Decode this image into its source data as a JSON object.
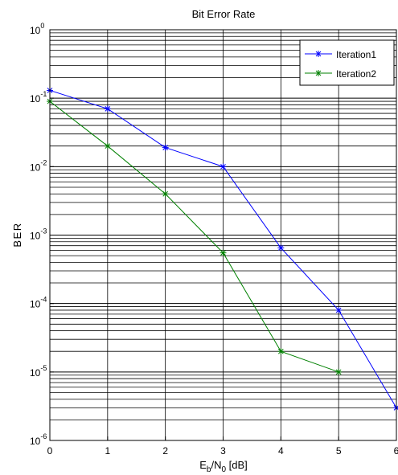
{
  "chart_data": {
    "type": "line",
    "title": "Bit Error Rate",
    "xlabel": {
      "main": "E",
      "sub1": "b",
      "mid": "/N",
      "sub2": "0",
      "tail": " [dB]"
    },
    "ylabel": "BER",
    "y_scale": "log",
    "xlim": [
      0,
      6
    ],
    "ylim": [
      1e-06,
      1
    ],
    "x_ticks": [
      0,
      1,
      2,
      3,
      4,
      5,
      6
    ],
    "x_tick_labels": [
      "0",
      "1",
      "2",
      "3",
      "4",
      "5",
      "6"
    ],
    "y_ticks": [
      {
        "value": 1,
        "base": "10",
        "exp": "0"
      },
      {
        "value": 0.1,
        "base": "10",
        "exp": "-1"
      },
      {
        "value": 0.01,
        "base": "10",
        "exp": "-2"
      },
      {
        "value": 0.001,
        "base": "10",
        "exp": "-3"
      },
      {
        "value": 0.0001,
        "base": "10",
        "exp": "-4"
      },
      {
        "value": 1e-05,
        "base": "10",
        "exp": "-5"
      },
      {
        "value": 1e-06,
        "base": "10",
        "exp": "-6"
      }
    ],
    "grid": true,
    "legend_position": "top-right",
    "series": [
      {
        "name": "Iteration1",
        "color": "#0000ff",
        "marker": "asterisk",
        "x": [
          0,
          1,
          2,
          3,
          4,
          5,
          6
        ],
        "y": [
          0.13,
          0.07,
          0.019,
          0.01,
          0.00065,
          8e-05,
          3e-06
        ]
      },
      {
        "name": "Iteration2",
        "color": "#008000",
        "marker": "asterisk",
        "x": [
          0,
          1,
          2,
          3,
          4,
          5
        ],
        "y": [
          0.09,
          0.02,
          0.004,
          0.00055,
          2e-05,
          1e-05
        ]
      }
    ]
  }
}
